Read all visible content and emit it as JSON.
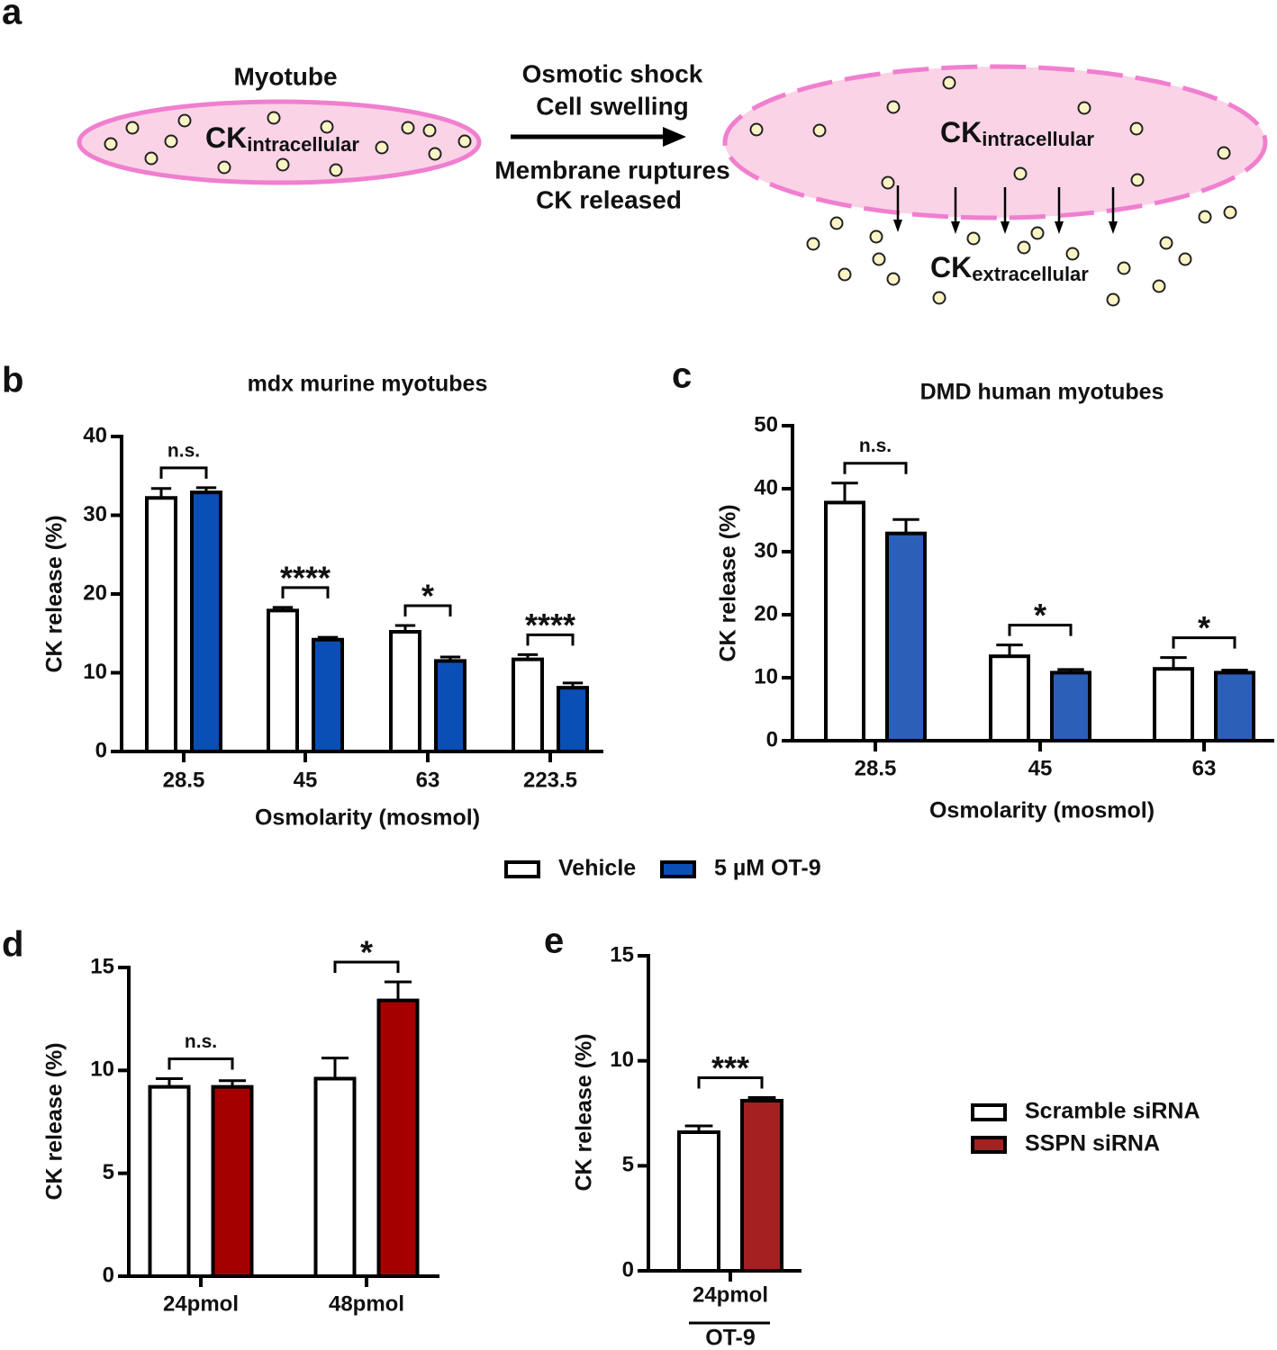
{
  "diagram": {
    "panel": "a",
    "left_label": "Myotube",
    "left_ck": {
      "main": "CK",
      "sub": "intracellular"
    },
    "arrow_top": [
      "Osmotic shock",
      "Cell swelling"
    ],
    "arrow_bottom": [
      "Membrane ruptures",
      "CK released"
    ],
    "right_ck": {
      "main": "CK",
      "sub": "intracellular"
    },
    "outside_ck": {
      "main": "CK",
      "sub": "extracellular"
    }
  },
  "chart_data": [
    {
      "type": "bar",
      "panel": "b",
      "title": "mdx murine myotubes",
      "xlabel": "Osmolarity (mosmol)",
      "ylabel": "CK release (%)",
      "categories": [
        "28.5",
        "45",
        "63",
        "223.5"
      ],
      "series": [
        {
          "name": "Vehicle",
          "color": "#ffffff",
          "values": [
            32.2,
            17.9,
            15.2,
            11.7
          ],
          "errors": [
            1.2,
            0.4,
            0.8,
            0.6
          ]
        },
        {
          "name": "5 µM OT-9",
          "color": "#0a4fb5",
          "values": [
            32.9,
            14.2,
            11.5,
            8.1
          ],
          "errors": [
            0.6,
            0.3,
            0.5,
            0.6
          ]
        }
      ],
      "annotations": [
        "n.s.",
        "****",
        "*",
        "****"
      ],
      "ylim": [
        0,
        40
      ],
      "yticks": [
        0,
        10,
        20,
        30,
        40
      ]
    },
    {
      "type": "bar",
      "panel": "c",
      "title": "DMD human myotubes",
      "xlabel": "Osmolarity (mosmol)",
      "ylabel": "CK release (%)",
      "categories": [
        "28.5",
        "45",
        "63"
      ],
      "series": [
        {
          "color": "#ffffff",
          "values": [
            37.8,
            13.4,
            11.4
          ],
          "errors": [
            3.1,
            1.8,
            1.8
          ]
        },
        {
          "color": "#2c5fb8",
          "values": [
            32.9,
            10.8,
            10.8
          ],
          "errors": [
            2.2,
            0.5,
            0.4
          ]
        }
      ],
      "annotations": [
        "n.s.",
        "*",
        "*"
      ],
      "ylim": [
        0,
        50
      ],
      "yticks": [
        0,
        10,
        20,
        30,
        40,
        50
      ]
    },
    {
      "type": "bar",
      "panel": "d",
      "ylabel": "CK release (%)",
      "categories": [
        "24pmol",
        "48pmol"
      ],
      "series": [
        {
          "color": "#ffffff",
          "values": [
            9.2,
            9.6
          ],
          "errors": [
            0.4,
            1.0
          ]
        },
        {
          "color": "#a50000",
          "values": [
            9.2,
            13.4
          ],
          "errors": [
            0.3,
            0.9
          ]
        }
      ],
      "annotations": [
        "n.s.",
        "*"
      ],
      "ylim": [
        0,
        15
      ],
      "yticks": [
        0,
        5,
        10,
        15
      ]
    },
    {
      "type": "bar",
      "panel": "e",
      "xlabel": "OT-9",
      "ylabel": "CK release (%)",
      "categories": [
        "24pmol"
      ],
      "series": [
        {
          "name": "Scramble siRNA",
          "color": "#ffffff",
          "values": [
            6.6
          ],
          "errors": [
            0.3
          ]
        },
        {
          "name": "SSPN siRNA",
          "color": "#a52020",
          "values": [
            8.1
          ],
          "errors": [
            0.15
          ]
        }
      ],
      "annotations": [
        "***"
      ],
      "ylim": [
        0,
        15
      ],
      "yticks": [
        0,
        5,
        10,
        15
      ]
    }
  ]
}
